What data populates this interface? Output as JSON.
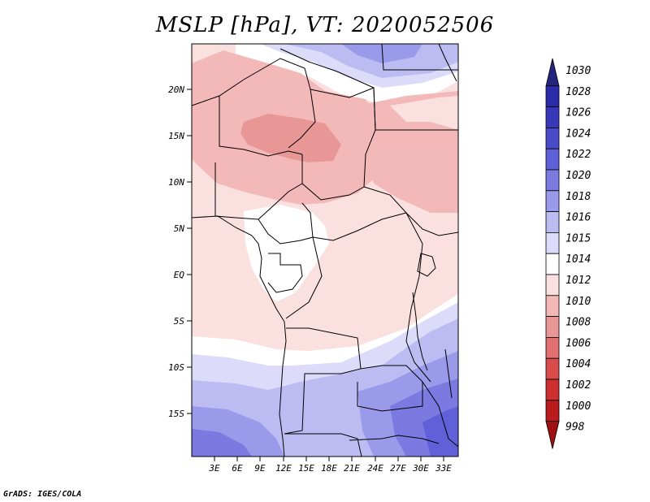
{
  "title": "MSLP [hPa], VT: 2020052506",
  "credit": "GrADS: IGES/COLA",
  "map": {
    "lat_labels": [
      "20N",
      "15N",
      "10N",
      "5N",
      "EQ",
      "5S",
      "10S",
      "15S"
    ],
    "lon_labels": [
      "3E",
      "6E",
      "9E",
      "12E",
      "15E",
      "18E",
      "21E",
      "24E",
      "27E",
      "30E",
      "33E"
    ]
  },
  "colorbar": {
    "levels": [
      {
        "label": "1030",
        "color": "#252580"
      },
      {
        "label": "1028",
        "color": "#2c2ca8"
      },
      {
        "label": "1026",
        "color": "#3838b8"
      },
      {
        "label": "1024",
        "color": "#4a4ac8"
      },
      {
        "label": "1022",
        "color": "#6060d8"
      },
      {
        "label": "1020",
        "color": "#7a7ae0"
      },
      {
        "label": "1018",
        "color": "#9a9aea"
      },
      {
        "label": "1016",
        "color": "#bcbcf2"
      },
      {
        "label": "1015",
        "color": "#dcdcfa"
      },
      {
        "label": "1014",
        "color": "#ffffff"
      },
      {
        "label": "1012",
        "color": "#fbe0e0"
      },
      {
        "label": "1010",
        "color": "#f3b8b8"
      },
      {
        "label": "1008",
        "color": "#e89696"
      },
      {
        "label": "1006",
        "color": "#e07070"
      },
      {
        "label": "1004",
        "color": "#d84c4c"
      },
      {
        "label": "1002",
        "color": "#cc3030"
      },
      {
        "label": "1000",
        "color": "#b81c1c"
      },
      {
        "label": "998",
        "color": "#a01010"
      }
    ]
  }
}
